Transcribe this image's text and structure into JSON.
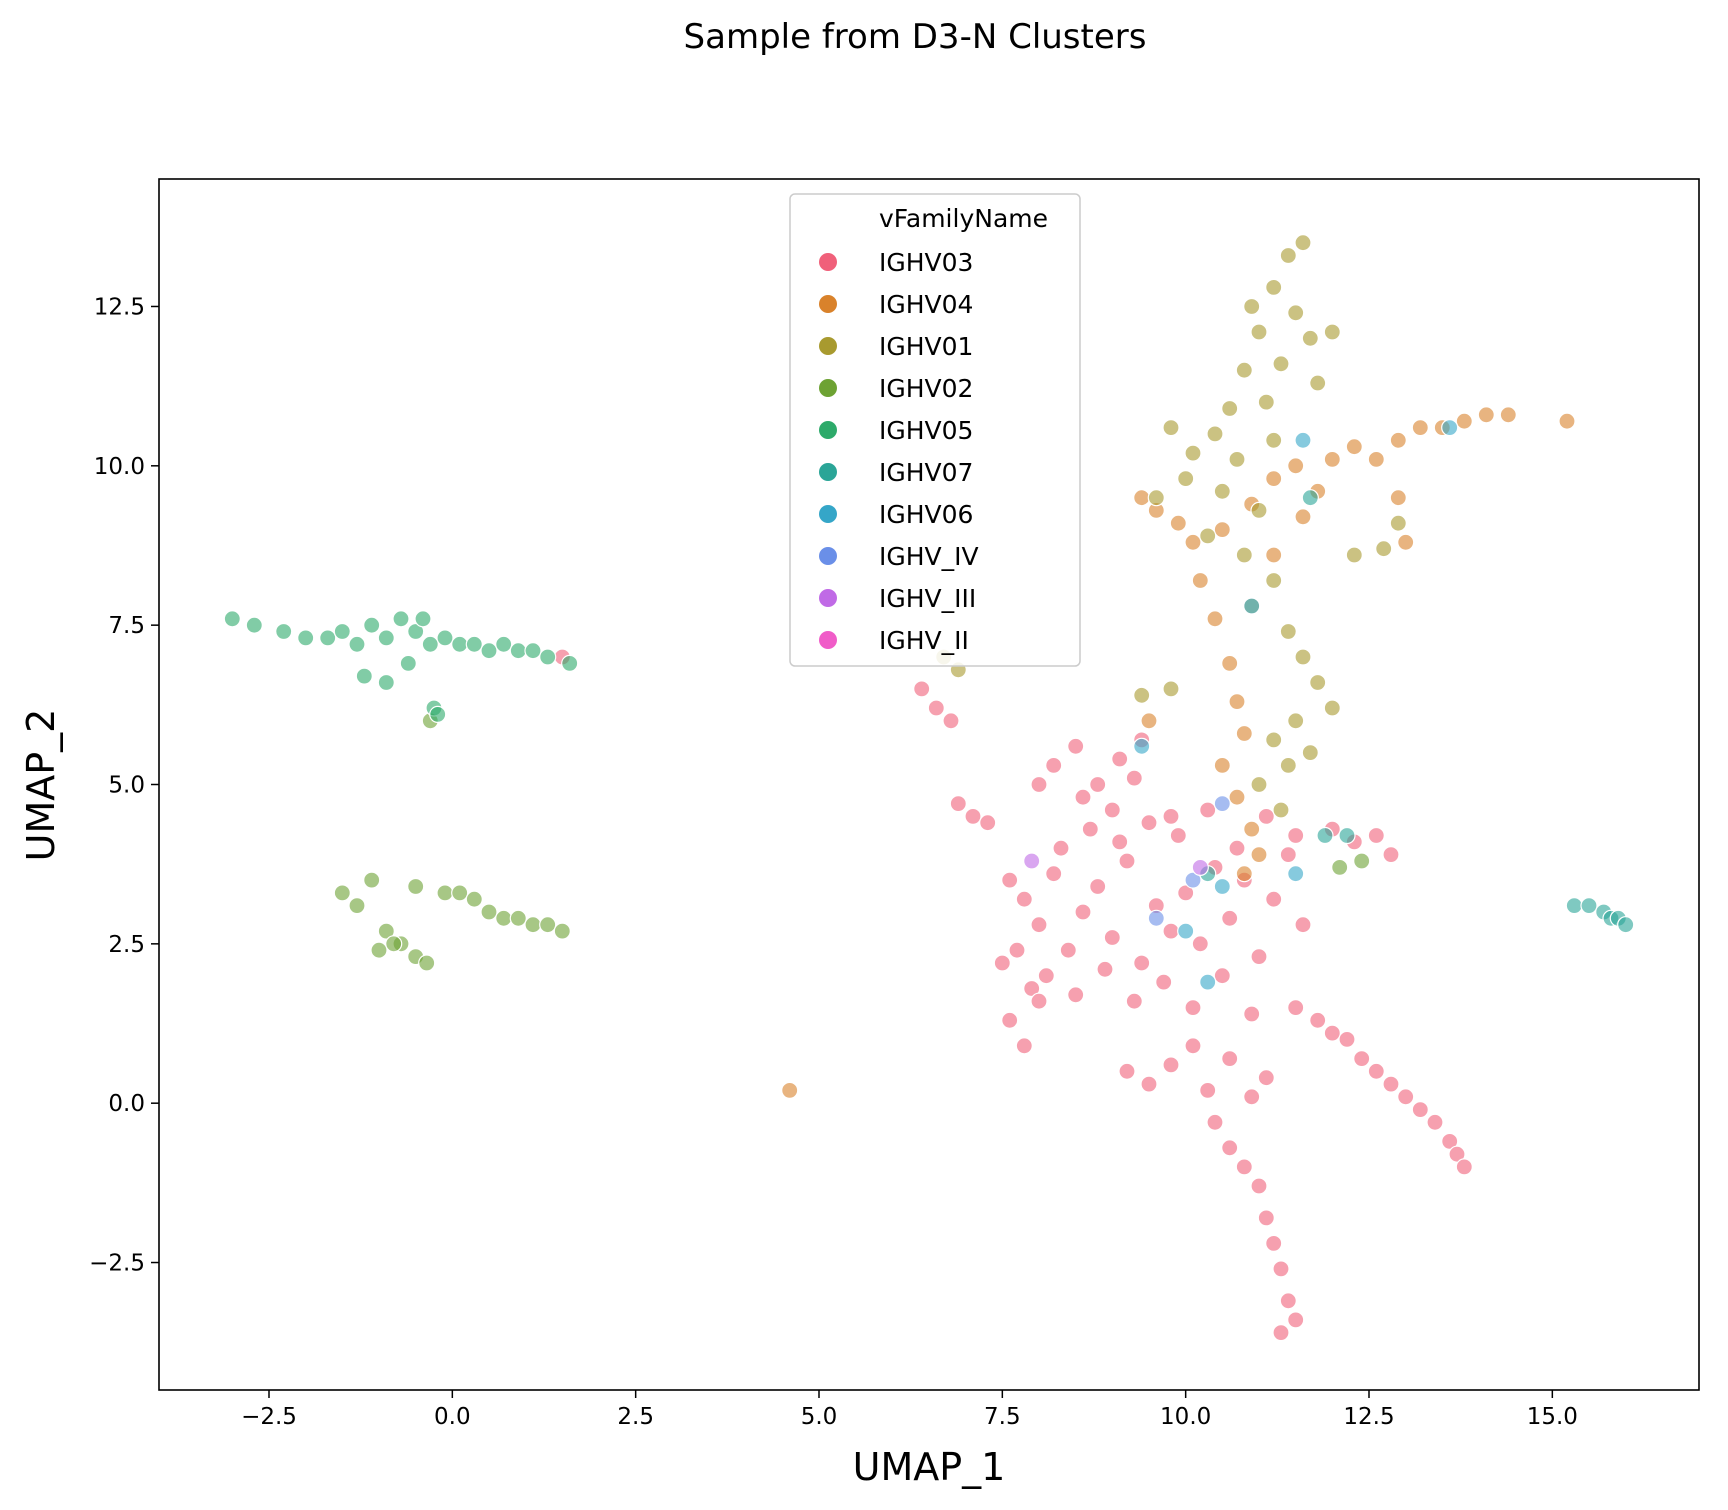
{
  "chart_data": {
    "type": "scatter",
    "title": "Sample from D3-N Clusters",
    "xlabel": "UMAP_1",
    "ylabel": "UMAP_2",
    "xlim": [
      -4.0,
      17.0
    ],
    "ylim": [
      -4.5,
      14.5
    ],
    "xticks": [
      -2.5,
      0.0,
      2.5,
      5.0,
      7.5,
      10.0,
      12.5,
      15.0
    ],
    "xtick_labels": [
      "−2.5",
      "0.0",
      "2.5",
      "5.0",
      "7.5",
      "10.0",
      "12.5",
      "15.0"
    ],
    "yticks": [
      -2.5,
      0.0,
      2.5,
      5.0,
      7.5,
      10.0,
      12.5
    ],
    "ytick_labels": [
      "−2.5",
      "0.0",
      "2.5",
      "5.0",
      "7.5",
      "10.0",
      "12.5"
    ],
    "grid": false,
    "legend": {
      "title": "vFamilyName",
      "placement": "upper-center"
    },
    "series": [
      {
        "name": "IGHV03",
        "color": "#f0607a",
        "points": [
          [
            7.6,
            3.5
          ],
          [
            7.8,
            3.2
          ],
          [
            8.0,
            2.8
          ],
          [
            8.2,
            3.6
          ],
          [
            8.4,
            2.4
          ],
          [
            8.6,
            3.0
          ],
          [
            8.8,
            3.4
          ],
          [
            9.0,
            2.6
          ],
          [
            9.2,
            3.8
          ],
          [
            9.4,
            2.2
          ],
          [
            9.6,
            3.1
          ],
          [
            9.8,
            2.7
          ],
          [
            10.0,
            3.3
          ],
          [
            10.2,
            2.5
          ],
          [
            10.4,
            3.7
          ],
          [
            10.6,
            2.9
          ],
          [
            10.8,
            3.5
          ],
          [
            11.0,
            2.3
          ],
          [
            11.2,
            3.2
          ],
          [
            11.4,
            3.9
          ],
          [
            11.6,
            2.8
          ],
          [
            8.1,
            2.0
          ],
          [
            8.5,
            1.7
          ],
          [
            8.9,
            2.1
          ],
          [
            9.3,
            1.6
          ],
          [
            9.7,
            1.9
          ],
          [
            10.1,
            1.5
          ],
          [
            10.5,
            2.0
          ],
          [
            10.9,
            1.4
          ],
          [
            8.3,
            4.0
          ],
          [
            8.7,
            4.3
          ],
          [
            9.1,
            4.1
          ],
          [
            9.5,
            4.4
          ],
          [
            9.9,
            4.2
          ],
          [
            10.3,
            4.6
          ],
          [
            10.7,
            4.0
          ],
          [
            11.1,
            4.5
          ],
          [
            11.5,
            4.2
          ],
          [
            7.9,
            1.8
          ],
          [
            8.0,
            1.6
          ],
          [
            9.0,
            4.6
          ],
          [
            9.8,
            4.5
          ],
          [
            7.7,
            2.4
          ],
          [
            7.5,
            2.2
          ],
          [
            8.2,
            5.3
          ],
          [
            8.5,
            5.6
          ],
          [
            8.8,
            5.0
          ],
          [
            9.1,
            5.4
          ],
          [
            9.4,
            5.7
          ],
          [
            8.0,
            5.0
          ],
          [
            8.6,
            4.8
          ],
          [
            9.3,
            5.1
          ],
          [
            9.2,
            0.5
          ],
          [
            9.5,
            0.3
          ],
          [
            9.8,
            0.6
          ],
          [
            10.1,
            0.9
          ],
          [
            10.3,
            0.2
          ],
          [
            10.6,
            0.7
          ],
          [
            10.9,
            0.1
          ],
          [
            11.1,
            0.4
          ],
          [
            10.4,
            -0.3
          ],
          [
            10.6,
            -0.7
          ],
          [
            10.8,
            -1.0
          ],
          [
            11.0,
            -1.3
          ],
          [
            11.1,
            -1.8
          ],
          [
            11.2,
            -2.2
          ],
          [
            11.3,
            -2.6
          ],
          [
            11.4,
            -3.1
          ],
          [
            11.5,
            -3.4
          ],
          [
            11.3,
            -3.6
          ],
          [
            11.5,
            1.5
          ],
          [
            11.8,
            1.3
          ],
          [
            12.0,
            1.1
          ],
          [
            12.2,
            1.0
          ],
          [
            12.4,
            0.7
          ],
          [
            12.6,
            0.5
          ],
          [
            12.8,
            0.3
          ],
          [
            13.0,
            0.1
          ],
          [
            13.2,
            -0.1
          ],
          [
            13.4,
            -0.3
          ],
          [
            13.6,
            -0.6
          ],
          [
            13.7,
            -0.8
          ],
          [
            13.8,
            -1.0
          ],
          [
            12.0,
            4.3
          ],
          [
            12.3,
            4.1
          ],
          [
            12.6,
            4.2
          ],
          [
            12.8,
            3.9
          ],
          [
            6.4,
            6.5
          ],
          [
            6.6,
            6.2
          ],
          [
            6.8,
            6.0
          ],
          [
            6.9,
            4.7
          ],
          [
            7.1,
            4.5
          ],
          [
            7.3,
            4.4
          ],
          [
            1.5,
            7.0
          ],
          [
            7.6,
            1.3
          ],
          [
            7.8,
            0.9
          ]
        ]
      },
      {
        "name": "IGHV04",
        "color": "#d9822b",
        "points": [
          [
            10.2,
            8.2
          ],
          [
            10.4,
            7.6
          ],
          [
            10.6,
            6.9
          ],
          [
            10.7,
            6.3
          ],
          [
            10.8,
            5.8
          ],
          [
            10.5,
            5.3
          ],
          [
            10.7,
            4.8
          ],
          [
            10.9,
            4.3
          ],
          [
            11.0,
            3.9
          ],
          [
            10.8,
            3.6
          ],
          [
            10.5,
            9.0
          ],
          [
            10.9,
            9.4
          ],
          [
            11.2,
            9.8
          ],
          [
            11.5,
            10.0
          ],
          [
            11.8,
            9.6
          ],
          [
            12.0,
            10.1
          ],
          [
            12.3,
            10.3
          ],
          [
            12.6,
            10.1
          ],
          [
            12.9,
            10.4
          ],
          [
            13.2,
            10.6
          ],
          [
            13.5,
            10.6
          ],
          [
            13.8,
            10.7
          ],
          [
            14.1,
            10.8
          ],
          [
            14.4,
            10.8
          ],
          [
            15.2,
            10.7
          ],
          [
            9.6,
            9.3
          ],
          [
            9.9,
            9.1
          ],
          [
            10.1,
            8.8
          ],
          [
            11.6,
            9.2
          ],
          [
            9.4,
            9.5
          ],
          [
            12.9,
            9.5
          ],
          [
            13.0,
            8.8
          ],
          [
            4.6,
            0.2
          ],
          [
            9.5,
            6.0
          ],
          [
            11.2,
            8.6
          ]
        ]
      },
      {
        "name": "IGHV01",
        "color": "#a89a2f",
        "points": [
          [
            11.4,
            13.3
          ],
          [
            11.6,
            13.5
          ],
          [
            11.2,
            12.8
          ],
          [
            11.5,
            12.4
          ],
          [
            11.0,
            12.1
          ],
          [
            11.7,
            12.0
          ],
          [
            11.3,
            11.6
          ],
          [
            11.8,
            11.3
          ],
          [
            10.8,
            11.5
          ],
          [
            11.1,
            11.0
          ],
          [
            10.6,
            10.9
          ],
          [
            10.4,
            10.5
          ],
          [
            9.8,
            10.6
          ],
          [
            10.1,
            10.2
          ],
          [
            10.7,
            10.1
          ],
          [
            11.2,
            10.4
          ],
          [
            10.0,
            9.8
          ],
          [
            10.5,
            9.6
          ],
          [
            11.0,
            9.3
          ],
          [
            9.6,
            9.5
          ],
          [
            10.3,
            8.9
          ],
          [
            10.8,
            8.6
          ],
          [
            11.2,
            8.2
          ],
          [
            10.9,
            7.8
          ],
          [
            11.4,
            7.4
          ],
          [
            11.6,
            7.0
          ],
          [
            11.8,
            6.6
          ],
          [
            12.0,
            6.2
          ],
          [
            11.5,
            6.0
          ],
          [
            11.2,
            5.7
          ],
          [
            11.4,
            5.3
          ],
          [
            11.0,
            5.0
          ],
          [
            11.3,
            4.6
          ],
          [
            11.7,
            5.5
          ],
          [
            12.7,
            8.7
          ],
          [
            12.9,
            9.1
          ],
          [
            12.3,
            8.6
          ],
          [
            9.4,
            6.4
          ],
          [
            9.8,
            6.5
          ],
          [
            6.7,
            7.0
          ],
          [
            6.9,
            6.8
          ],
          [
            12.0,
            12.1
          ],
          [
            10.9,
            12.5
          ]
        ]
      },
      {
        "name": "IGHV02",
        "color": "#6da233",
        "points": [
          [
            -1.5,
            3.3
          ],
          [
            -1.3,
            3.1
          ],
          [
            -1.1,
            3.5
          ],
          [
            -0.9,
            2.7
          ],
          [
            -0.7,
            2.5
          ],
          [
            -0.5,
            2.3
          ],
          [
            -0.35,
            2.2
          ],
          [
            -1.0,
            2.4
          ],
          [
            -0.8,
            2.5
          ],
          [
            -0.5,
            3.4
          ],
          [
            -0.1,
            3.3
          ],
          [
            0.1,
            3.3
          ],
          [
            0.3,
            3.2
          ],
          [
            0.5,
            3.0
          ],
          [
            0.7,
            2.9
          ],
          [
            0.9,
            2.9
          ],
          [
            1.1,
            2.8
          ],
          [
            1.3,
            2.8
          ],
          [
            1.5,
            2.7
          ],
          [
            -0.3,
            6.0
          ],
          [
            12.4,
            3.8
          ],
          [
            12.1,
            3.7
          ]
        ]
      },
      {
        "name": "IGHV05",
        "color": "#2daa6a",
        "points": [
          [
            -3.0,
            7.6
          ],
          [
            -2.7,
            7.5
          ],
          [
            -2.3,
            7.4
          ],
          [
            -2.0,
            7.3
          ],
          [
            -1.7,
            7.3
          ],
          [
            -1.5,
            7.4
          ],
          [
            -1.3,
            7.2
          ],
          [
            -1.1,
            7.5
          ],
          [
            -0.9,
            7.3
          ],
          [
            -0.7,
            7.6
          ],
          [
            -0.5,
            7.4
          ],
          [
            -0.3,
            7.2
          ],
          [
            -0.1,
            7.3
          ],
          [
            0.1,
            7.2
          ],
          [
            0.3,
            7.2
          ],
          [
            0.5,
            7.1
          ],
          [
            0.7,
            7.2
          ],
          [
            0.9,
            7.1
          ],
          [
            1.1,
            7.1
          ],
          [
            1.3,
            7.0
          ],
          [
            1.6,
            6.9
          ],
          [
            -1.2,
            6.7
          ],
          [
            -0.9,
            6.6
          ],
          [
            -0.6,
            6.9
          ],
          [
            -0.25,
            6.2
          ],
          [
            -0.2,
            6.1
          ],
          [
            -0.4,
            7.6
          ]
        ]
      },
      {
        "name": "IGHV07",
        "color": "#2aa597",
        "points": [
          [
            15.3,
            3.1
          ],
          [
            15.5,
            3.1
          ],
          [
            15.7,
            3.0
          ],
          [
            15.8,
            2.9
          ],
          [
            15.9,
            2.9
          ],
          [
            16.0,
            2.8
          ],
          [
            11.9,
            4.2
          ],
          [
            12.2,
            4.2
          ],
          [
            10.3,
            3.6
          ],
          [
            11.7,
            9.5
          ]
        ]
      },
      {
        "name": "IGHV06",
        "color": "#35a6c8",
        "points": [
          [
            13.6,
            10.6
          ],
          [
            11.6,
            10.4
          ],
          [
            10.5,
            3.4
          ],
          [
            10.0,
            2.7
          ],
          [
            10.3,
            1.9
          ],
          [
            11.5,
            3.6
          ],
          [
            9.4,
            5.6
          ],
          [
            10.9,
            7.8
          ]
        ]
      },
      {
        "name": "IGHV_IV",
        "color": "#6a8fe8",
        "points": [
          [
            10.5,
            4.7
          ],
          [
            10.1,
            3.5
          ],
          [
            9.6,
            2.9
          ]
        ]
      },
      {
        "name": "IGHV_III",
        "color": "#c06ae6",
        "points": [
          [
            10.2,
            3.7
          ],
          [
            7.9,
            3.8
          ]
        ]
      },
      {
        "name": "IGHV_II",
        "color": "#f05cc8",
        "points": []
      }
    ]
  }
}
